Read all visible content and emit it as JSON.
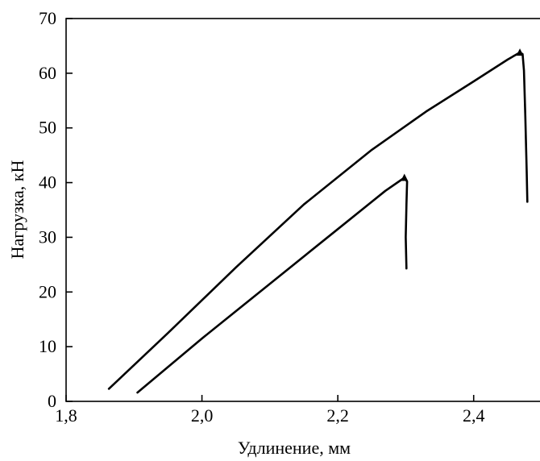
{
  "chart_data": {
    "type": "line",
    "title": "",
    "xlabel": "Удлинение, мм",
    "ylabel": "Нагрузка, кН",
    "xlim": [
      1.8,
      2.5
    ],
    "ylim": [
      0,
      70
    ],
    "xticks": [
      {
        "value": 1.8,
        "label": "1,8"
      },
      {
        "value": 2.0,
        "label": "2,0"
      },
      {
        "value": 2.2,
        "label": "2,2"
      },
      {
        "value": 2.4,
        "label": "2,4"
      }
    ],
    "yticks": [
      {
        "value": 0,
        "label": "0"
      },
      {
        "value": 10,
        "label": "10"
      },
      {
        "value": 20,
        "label": "20"
      },
      {
        "value": 30,
        "label": "30"
      },
      {
        "value": 40,
        "label": "40"
      },
      {
        "value": 50,
        "label": "50"
      },
      {
        "value": 60,
        "label": "60"
      },
      {
        "value": 70,
        "label": "70"
      }
    ],
    "grid": false,
    "legend": false,
    "series": [
      {
        "color": "#000000",
        "points": [
          [
            1.863,
            2.3
          ],
          [
            1.95,
            12.5
          ],
          [
            2.05,
            24.5
          ],
          [
            2.15,
            36.0
          ],
          [
            2.25,
            46.0
          ],
          [
            2.33,
            53.0
          ],
          [
            2.4,
            58.5
          ],
          [
            2.45,
            62.5
          ],
          [
            2.468,
            63.8
          ],
          [
            2.472,
            63.5
          ],
          [
            2.474,
            60.5
          ],
          [
            2.476,
            52.0
          ],
          [
            2.478,
            42.0
          ],
          [
            2.479,
            36.5
          ]
        ],
        "peak_marker": [
          2.468,
          63.8
        ]
      },
      {
        "color": "#000000",
        "points": [
          [
            1.905,
            1.6
          ],
          [
            2.0,
            11.5
          ],
          [
            2.1,
            21.5
          ],
          [
            2.2,
            31.5
          ],
          [
            2.27,
            38.5
          ],
          [
            2.298,
            40.9
          ],
          [
            2.302,
            40.2
          ],
          [
            2.301,
            36.0
          ],
          [
            2.3,
            30.0
          ],
          [
            2.301,
            24.3
          ]
        ],
        "peak_marker": [
          2.298,
          40.9
        ]
      }
    ]
  }
}
